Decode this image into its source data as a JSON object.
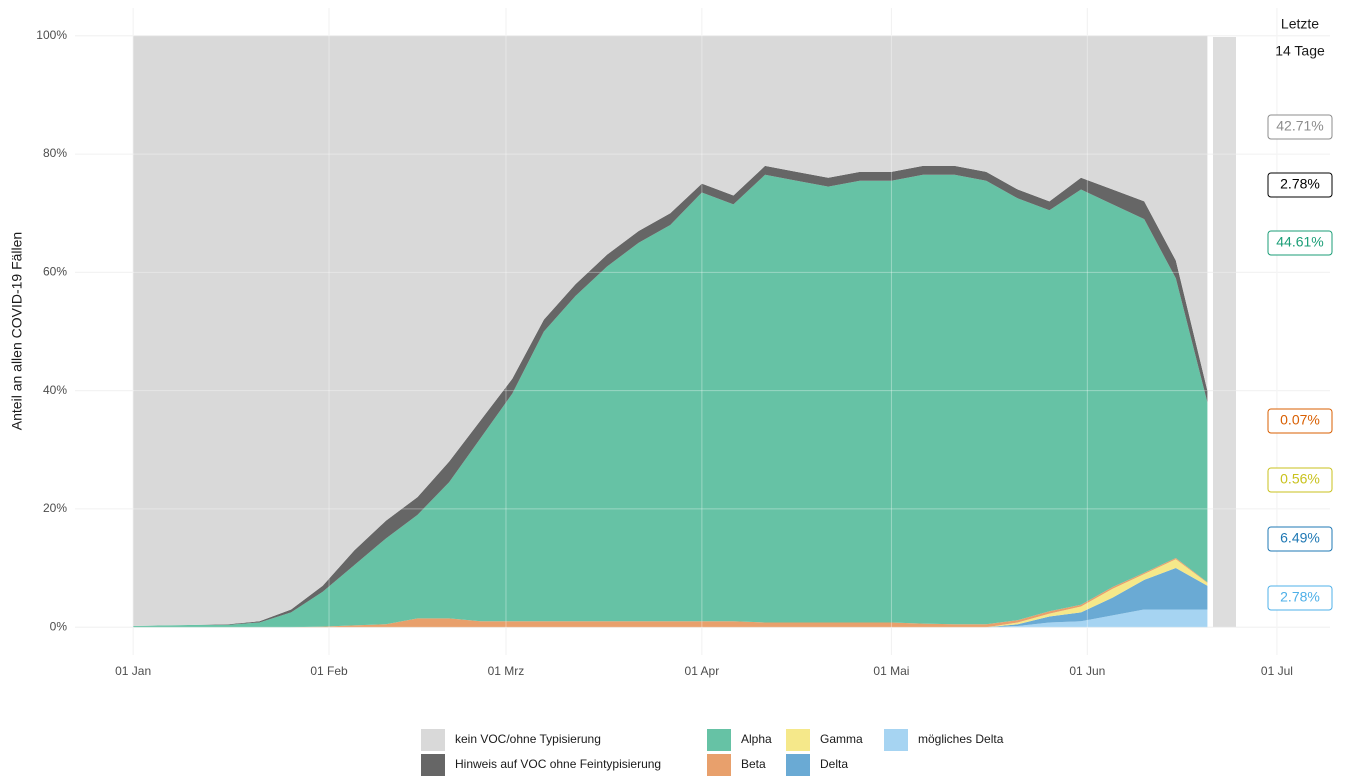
{
  "chart_data": {
    "type": "stacked_area",
    "ylabel": "Anteil an allen COVID-19 Fällen",
    "x": [
      0,
      5,
      10,
      15,
      20,
      25,
      30,
      35,
      40,
      45,
      50,
      55,
      60,
      65,
      70,
      75,
      80,
      85,
      90,
      95,
      100,
      105,
      110,
      115,
      120,
      125,
      130,
      135,
      140,
      145,
      150,
      155,
      160,
      165,
      170
    ],
    "xlim": [
      -9.2,
      189.4
    ],
    "xticks": [
      {
        "value": 0,
        "label": "01 Jan"
      },
      {
        "value": 31,
        "label": "01 Feb"
      },
      {
        "value": 59,
        "label": "01 Mrz"
      },
      {
        "value": 90,
        "label": "01 Apr"
      },
      {
        "value": 120,
        "label": "01 Mai"
      },
      {
        "value": 151,
        "label": "01 Jun"
      },
      {
        "value": 181,
        "label": "01 Jul"
      }
    ],
    "ylim": [
      -4.7,
      104.7
    ],
    "yticks": [
      {
        "value": 0,
        "label": "0%"
      },
      {
        "value": 20,
        "label": "20%"
      },
      {
        "value": 40,
        "label": "40%"
      },
      {
        "value": 60,
        "label": "60%"
      },
      {
        "value": 80,
        "label": "80%"
      },
      {
        "value": 100,
        "label": "100%"
      }
    ],
    "grid": true,
    "series": [
      {
        "name": "kein VOC/ohne Typisierung",
        "color": "#d9d9d9",
        "label_color": "#8c8c8c",
        "values": [
          99.8,
          99.7,
          99.6,
          99.5,
          99,
          97,
          93,
          87,
          82,
          78,
          72,
          65,
          58,
          48,
          42,
          37,
          33,
          30,
          25,
          27,
          22,
          23,
          24,
          23,
          23,
          22,
          22,
          23,
          26,
          28,
          24,
          26,
          28,
          38,
          60
        ]
      },
      {
        "name": "Hinweis auf VOC ohne Feintypisierung",
        "color": "#666666",
        "label_color": "#000000",
        "values": [
          0,
          0,
          0,
          0.1,
          0.2,
          0.5,
          1,
          2.5,
          3,
          3,
          3.5,
          3,
          2.5,
          2,
          2,
          2,
          2,
          2,
          1.5,
          1.5,
          1.5,
          1.5,
          1.5,
          1.5,
          1.5,
          1.5,
          1.5,
          1.5,
          1.5,
          1.5,
          2,
          2.5,
          3,
          3,
          2
        ]
      },
      {
        "name": "Alpha",
        "color": "#66c2a5",
        "label_color": "#1b9e77",
        "values": [
          0.2,
          0.3,
          0.4,
          0.4,
          0.8,
          2.5,
          5.9,
          10.2,
          14.5,
          17.5,
          23,
          31,
          38.5,
          49,
          55,
          60,
          64,
          67,
          72.5,
          70.5,
          75.7,
          74.7,
          73.7,
          74.7,
          74.7,
          75.9,
          76,
          75,
          71.3,
          67.8,
          70.2,
          64.7,
          59.8,
          47.3,
          30.4
        ]
      },
      {
        "name": "Beta",
        "color": "#e8a06c",
        "label_color": "#d95f02",
        "values": [
          0,
          0,
          0,
          0,
          0,
          0,
          0.1,
          0.3,
          0.5,
          1.5,
          1.5,
          1,
          1,
          1,
          1,
          1,
          1,
          1,
          1,
          1,
          0.8,
          0.8,
          0.8,
          0.8,
          0.8,
          0.6,
          0.5,
          0.5,
          0.4,
          0.4,
          0.3,
          0.3,
          0.2,
          0.2,
          0.1
        ]
      },
      {
        "name": "Gamma",
        "color": "#f5e88a",
        "label_color": "#c9c21e",
        "values": [
          0,
          0,
          0,
          0,
          0,
          0,
          0,
          0,
          0,
          0,
          0,
          0,
          0,
          0,
          0,
          0,
          0,
          0,
          0,
          0,
          0,
          0,
          0,
          0,
          0,
          0,
          0,
          0,
          0.3,
          0.5,
          1,
          1.5,
          1,
          1.5,
          0.5
        ]
      },
      {
        "name": "Delta",
        "color": "#6aaad4",
        "label_color": "#1f78b4",
        "values": [
          0,
          0,
          0,
          0,
          0,
          0,
          0,
          0,
          0,
          0,
          0,
          0,
          0,
          0,
          0,
          0,
          0,
          0,
          0,
          0,
          0,
          0,
          0,
          0,
          0,
          0,
          0,
          0,
          0.3,
          1,
          1.5,
          3,
          5,
          7,
          4
        ]
      },
      {
        "name": "mögliches Delta",
        "color": "#a6d4f2",
        "label_color": "#4fb0e8",
        "values": [
          0,
          0,
          0,
          0,
          0,
          0,
          0,
          0,
          0,
          0,
          0,
          0,
          0,
          0,
          0,
          0,
          0,
          0,
          0,
          0,
          0,
          0,
          0,
          0,
          0,
          0,
          0,
          0,
          0.2,
          0.8,
          1,
          2,
          3,
          3,
          3
        ]
      }
    ],
    "last14_title": [
      "Letzte",
      "14 Tage"
    ],
    "last14_values": [
      42.71,
      2.78,
      44.61,
      0.07,
      0.56,
      6.49,
      2.78
    ],
    "last14_value_labels": [
      "42.71%",
      "2.78%",
      "44.61%",
      "0.07%",
      "0.56%",
      "6.49%",
      "2.78%"
    ]
  }
}
